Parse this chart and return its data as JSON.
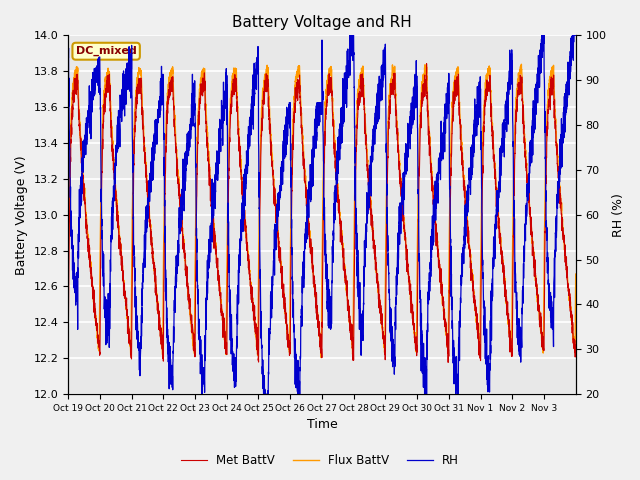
{
  "title": "Battery Voltage and RH",
  "xlabel": "Time",
  "ylabel_left": "Battery Voltage (V)",
  "ylabel_right": "RH (%)",
  "annotation": "DC_mixed",
  "ylim_left": [
    12.0,
    14.0
  ],
  "ylim_right": [
    20,
    100
  ],
  "yticks_left": [
    12.0,
    12.2,
    12.4,
    12.6,
    12.8,
    13.0,
    13.2,
    13.4,
    13.6,
    13.8,
    14.0
  ],
  "yticks_right": [
    20,
    30,
    40,
    50,
    60,
    70,
    80,
    90,
    100
  ],
  "x_tick_labels": [
    "Oct 19",
    "Oct 20",
    "Oct 21",
    "Oct 22",
    "Oct 23",
    "Oct 24",
    "Oct 25",
    "Oct 26",
    "Oct 27",
    "Oct 28",
    "Oct 29",
    "Oct 30",
    "Oct 31",
    "Nov 1",
    "Nov 2",
    "Nov 3"
  ],
  "color_met": "#cc0000",
  "color_flux": "#ff9900",
  "color_rh": "#0000cc",
  "legend_labels": [
    "Met BattV",
    "Flux BattV",
    "RH"
  ],
  "bg_color": "#e8e8e8",
  "grid_color": "#ffffff",
  "annotation_bg": "#ffffcc",
  "annotation_border": "#cc9900",
  "annotation_text_color": "#880000",
  "fig_facecolor": "#f0f0f0"
}
